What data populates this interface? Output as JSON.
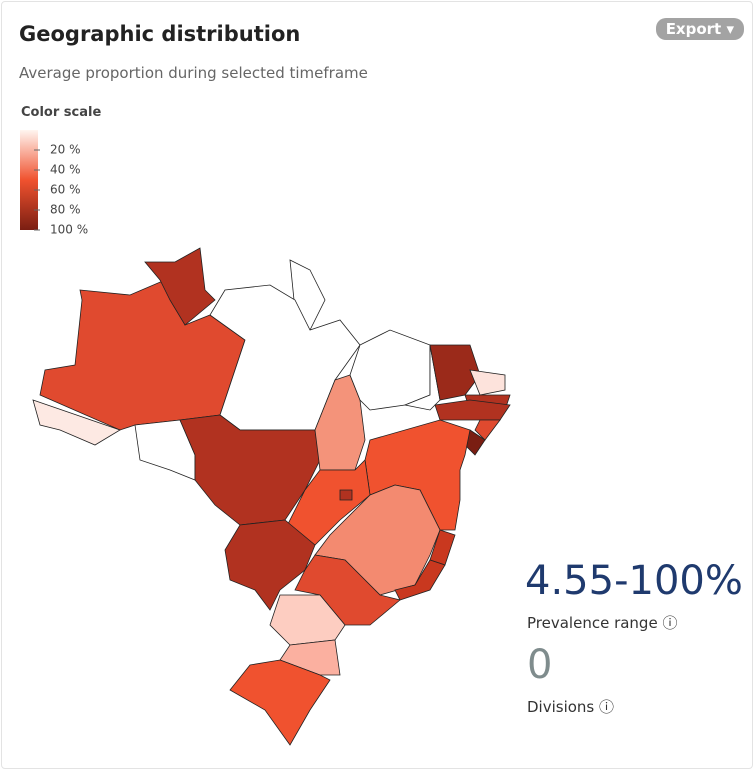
{
  "header": {
    "title": "Geographic distribution",
    "subtitle": "Average proportion during selected timeframe",
    "export": "Export"
  },
  "color_scale": {
    "title": "Color scale",
    "labels": [
      "20 %",
      "40 %",
      "60 %",
      "80 %",
      "100 %"
    ]
  },
  "stats": [
    {
      "value": "4.55-100%",
      "label": "Prevalence range"
    },
    {
      "value": "0",
      "label": "Divisions"
    }
  ]
}
